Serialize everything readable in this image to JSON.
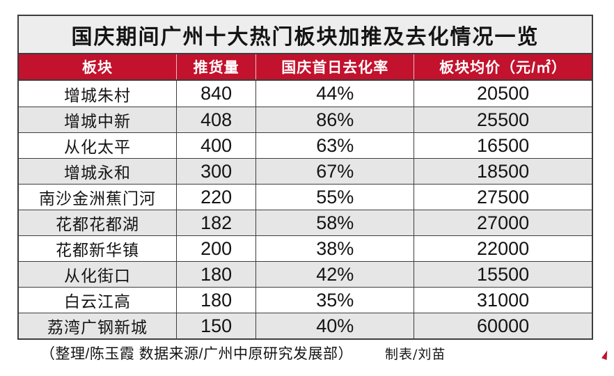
{
  "title": "国庆期间广州十大热门板块加推及去化情况一览",
  "chart_data": {
    "type": "table",
    "title": "国庆期间广州十大热门板块加推及去化情况一览",
    "columns": [
      "板块",
      "推货量",
      "国庆首日去化率",
      "板块均价（元/㎡）"
    ],
    "rows": [
      [
        "增城朱村",
        "840",
        "44%",
        "20500"
      ],
      [
        "增城中新",
        "408",
        "86%",
        "25500"
      ],
      [
        "从化太平",
        "400",
        "63%",
        "16500"
      ],
      [
        "增城永和",
        "300",
        "67%",
        "18500"
      ],
      [
        "南沙金洲蕉门河",
        "220",
        "55%",
        "27500"
      ],
      [
        "花都花都湖",
        "182",
        "58%",
        "27000"
      ],
      [
        "花都新华镇",
        "200",
        "38%",
        "22000"
      ],
      [
        "从化街口",
        "180",
        "42%",
        "15500"
      ],
      [
        "白云江高",
        "180",
        "35%",
        "31000"
      ],
      [
        "荔湾广钢新城",
        "150",
        "40%",
        "60000"
      ]
    ]
  },
  "footer": {
    "credits": "（整理/陈玉霞 数据来源/广州中原研究发展部）",
    "tabulator": "制表/刘苗"
  },
  "colors": {
    "header_red": "#c2122d",
    "title_bg": "#ededed",
    "row_alt_gray": "#e6e6e6",
    "border_dark": "#3d3d3d"
  }
}
